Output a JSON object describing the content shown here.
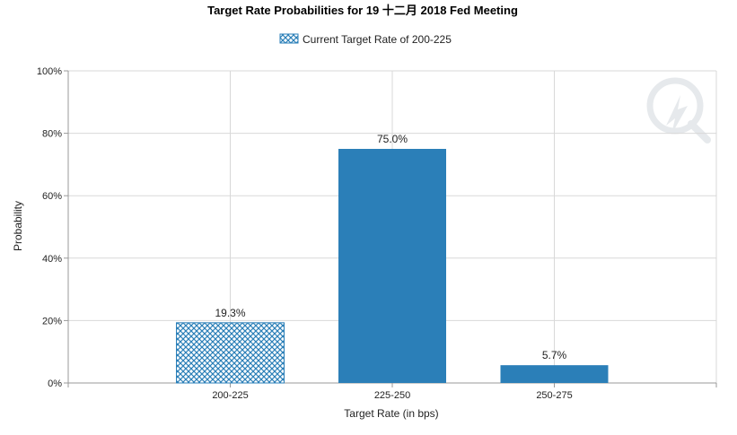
{
  "chart_data": {
    "type": "bar",
    "title": "Target Rate Probabilities for 19 十二月 2018  Fed Meeting",
    "legend": "Current Target Rate of 200-225",
    "categories": [
      "200-225",
      "225-250",
      "250-275"
    ],
    "values": [
      19.3,
      75.0,
      5.7
    ],
    "data_labels": [
      "19.3%",
      "75.0%",
      "5.7%"
    ],
    "highlighted_category": "200-225",
    "xlabel": "Target Rate (in bps)",
    "ylabel": "Probability",
    "ylim": [
      0,
      100
    ],
    "yticks": [
      0,
      20,
      40,
      60,
      80,
      100
    ],
    "ytick_labels": [
      "0%",
      "20%",
      "40%",
      "60%",
      "80%",
      "100%"
    ],
    "grid": true,
    "legend_position": "top-center"
  },
  "colors": {
    "bar": "#2b7fb8",
    "hatch_bg": "#ffffff",
    "hatch_line": "#2b7fb8",
    "grid": "#d8d8d8",
    "axis": "#999999"
  }
}
